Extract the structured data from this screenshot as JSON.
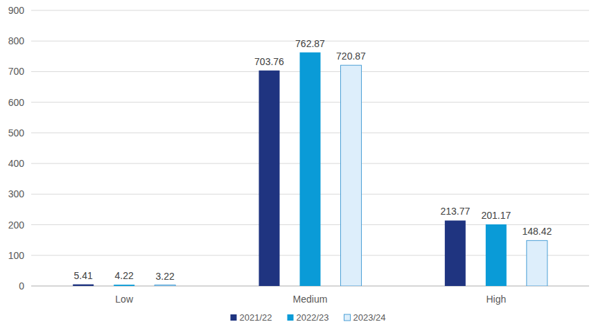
{
  "chart_data": {
    "type": "bar",
    "categories": [
      "Low",
      "Medium",
      "High"
    ],
    "series": [
      {
        "name": "2021/22",
        "color": "#1f3480",
        "values": [
          5.41,
          703.76,
          213.77
        ]
      },
      {
        "name": "2022/23",
        "color": "#0a9bd7",
        "values": [
          4.22,
          762.87,
          201.17
        ]
      },
      {
        "name": "2023/24",
        "color": "#ddeefb",
        "values": [
          3.22,
          720.87,
          148.42
        ]
      }
    ],
    "ylim": [
      0,
      900
    ],
    "yticks": [
      0,
      100,
      200,
      300,
      400,
      500,
      600,
      700,
      800,
      900
    ],
    "grid": true,
    "legend": "bottom",
    "data_labels": true
  }
}
